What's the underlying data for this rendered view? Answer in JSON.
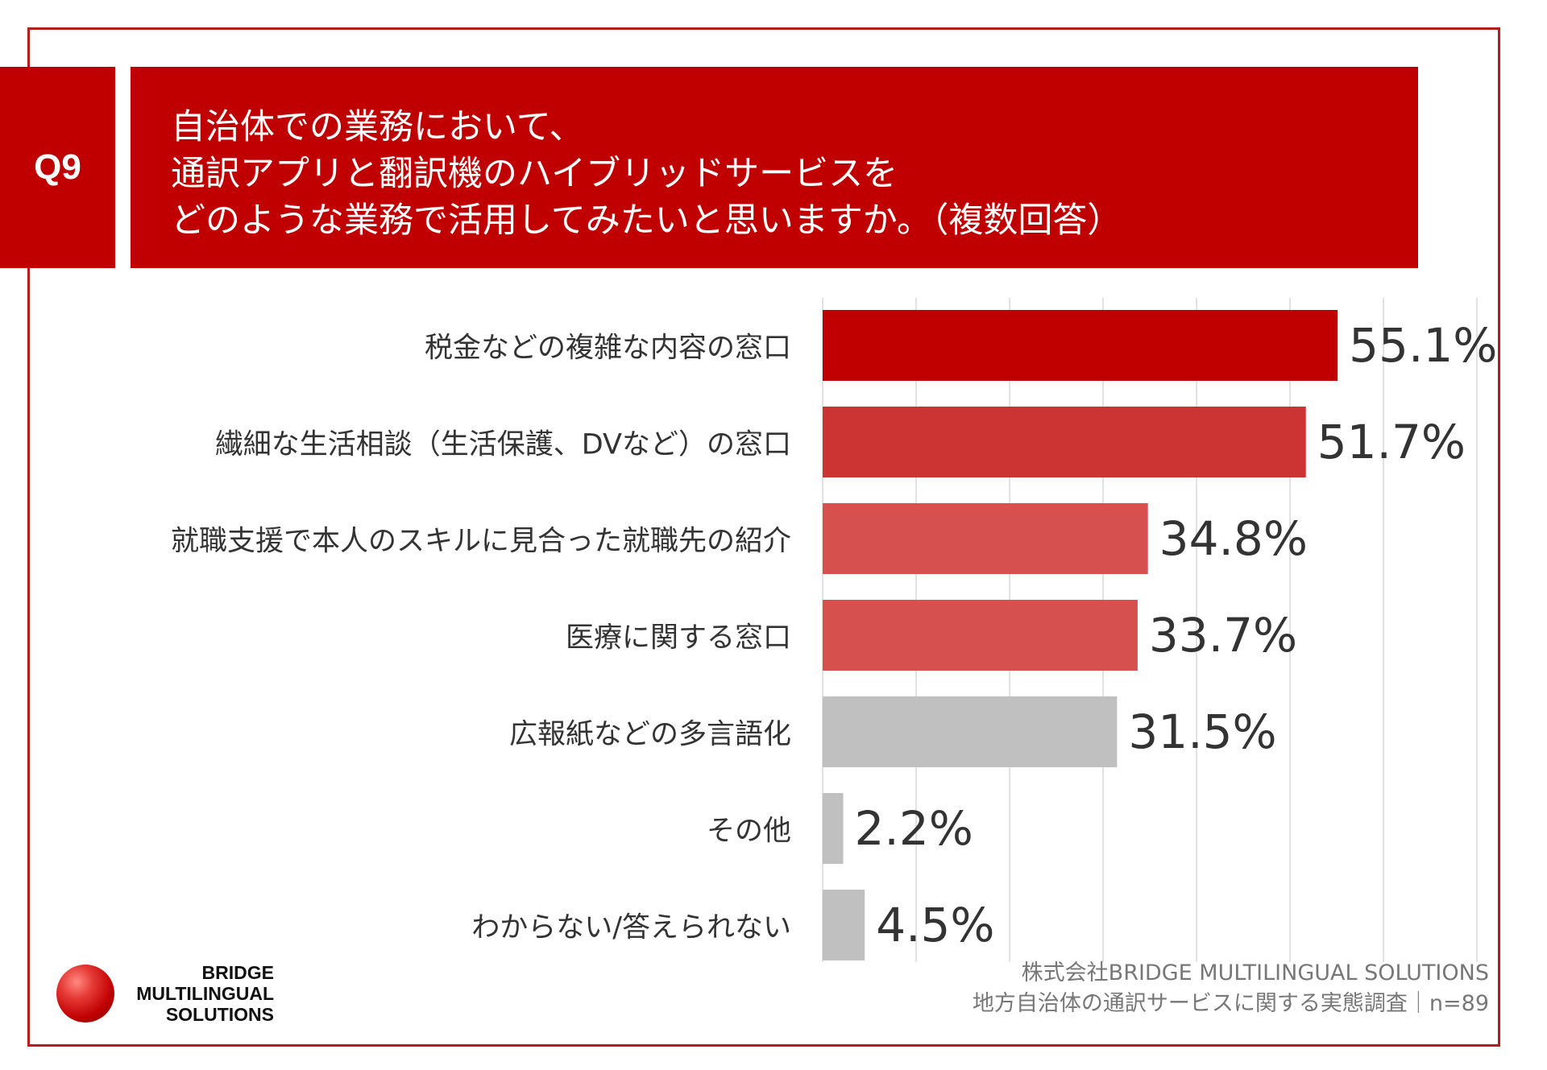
{
  "question_id": "Q9",
  "title_lines": [
    "自治体での業務において、",
    "通訳アプリと翻訳機のハイブリッドサービスを",
    "どのような業務で活用してみたいと思いますか。（複数回答）"
  ],
  "chart_data": {
    "type": "bar",
    "orientation": "horizontal",
    "categories": [
      "税金などの複雑な内容の窓口",
      "繊細な生活相談（生活保護、DVなど）の窓口",
      "就職支援で本人のスキルに見合った就職先の紹介",
      "医療に関する窓口",
      "広報紙などの多言語化",
      "その他",
      "わからない/答えられない"
    ],
    "values": [
      55.1,
      51.7,
      34.8,
      33.7,
      31.5,
      2.2,
      4.5
    ],
    "value_labels": [
      "55.1%",
      "51.7%",
      "34.8%",
      "33.7%",
      "31.5%",
      "2.2%",
      "4.5%"
    ],
    "bar_colors": [
      "#c00000",
      "#cc3333",
      "#d65050",
      "#d65050",
      "#c0c0c0",
      "#c0c0c0",
      "#c0c0c0"
    ],
    "unit": "%",
    "xlim": [
      0,
      70
    ],
    "grid": true
  },
  "credit": {
    "company": "株式会社BRIDGE MULTILINGUAL SOLUTIONS",
    "survey": "地方自治体の通訳サービスに関する実態調査｜n=89"
  },
  "logo": {
    "line1": "BRIDGE",
    "line2": "MULTILINGUAL",
    "line3": "SOLUTIONS"
  }
}
